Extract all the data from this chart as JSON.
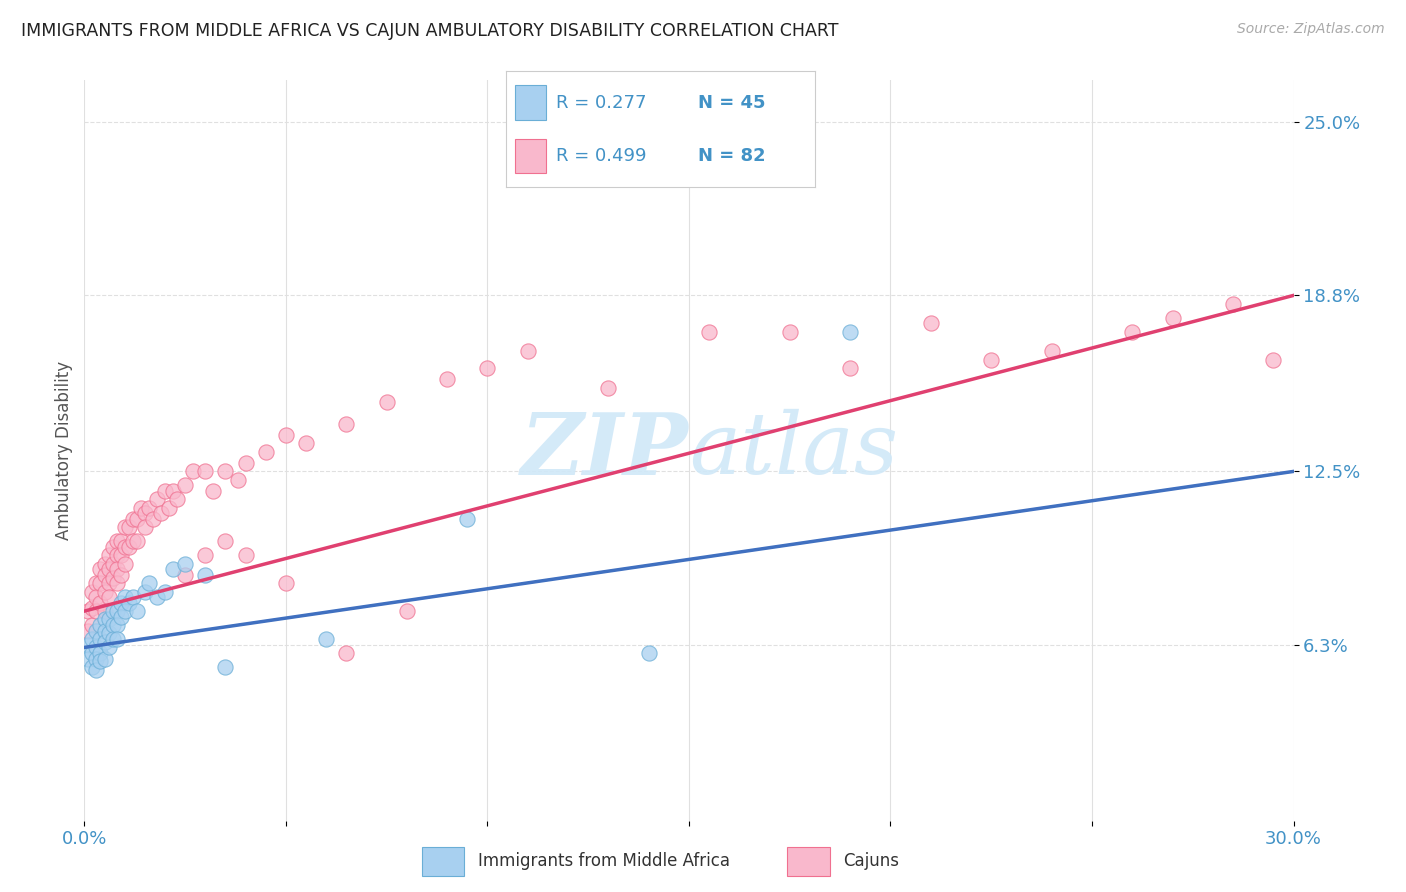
{
  "title": "IMMIGRANTS FROM MIDDLE AFRICA VS CAJUN AMBULATORY DISABILITY CORRELATION CHART",
  "source": "Source: ZipAtlas.com",
  "ylabel": "Ambulatory Disability",
  "ytick_labels": [
    "6.3%",
    "12.5%",
    "18.8%",
    "25.0%"
  ],
  "ytick_values": [
    0.063,
    0.125,
    0.188,
    0.25
  ],
  "xlim": [
    0.0,
    0.3
  ],
  "ylim": [
    0.0,
    0.265
  ],
  "legend_blue_R": "R = 0.277",
  "legend_blue_N": "N = 45",
  "legend_pink_R": "R = 0.499",
  "legend_pink_N": "N = 82",
  "blue_scatter_color": "#a8d0f0",
  "blue_edge_color": "#6aaed6",
  "pink_scatter_color": "#f9b8cc",
  "pink_edge_color": "#f07090",
  "blue_line_color": "#4070c0",
  "pink_line_color": "#e04070",
  "title_color": "#222222",
  "axis_label_color": "#4292c6",
  "watermark_color": "#d0e8f8",
  "background_color": "#ffffff",
  "grid_color": "#e0e0e0",
  "blue_trend_x0": 0.0,
  "blue_trend_y0": 0.062,
  "blue_trend_x1": 0.3,
  "blue_trend_y1": 0.125,
  "pink_trend_x0": 0.0,
  "pink_trend_y0": 0.075,
  "pink_trend_x1": 0.3,
  "pink_trend_y1": 0.188,
  "blue_scatter_x": [
    0.001,
    0.001,
    0.002,
    0.002,
    0.002,
    0.003,
    0.003,
    0.003,
    0.003,
    0.004,
    0.004,
    0.004,
    0.004,
    0.005,
    0.005,
    0.005,
    0.005,
    0.006,
    0.006,
    0.006,
    0.007,
    0.007,
    0.007,
    0.008,
    0.008,
    0.008,
    0.009,
    0.009,
    0.01,
    0.01,
    0.011,
    0.012,
    0.013,
    0.015,
    0.016,
    0.018,
    0.02,
    0.022,
    0.025,
    0.03,
    0.035,
    0.06,
    0.095,
    0.14,
    0.19
  ],
  "blue_scatter_y": [
    0.063,
    0.058,
    0.065,
    0.06,
    0.055,
    0.068,
    0.062,
    0.058,
    0.054,
    0.07,
    0.065,
    0.06,
    0.057,
    0.072,
    0.068,
    0.064,
    0.058,
    0.072,
    0.067,
    0.062,
    0.075,
    0.07,
    0.065,
    0.075,
    0.07,
    0.065,
    0.078,
    0.073,
    0.08,
    0.075,
    0.078,
    0.08,
    0.075,
    0.082,
    0.085,
    0.08,
    0.082,
    0.09,
    0.092,
    0.088,
    0.055,
    0.065,
    0.108,
    0.06,
    0.175
  ],
  "pink_scatter_x": [
    0.001,
    0.001,
    0.002,
    0.002,
    0.002,
    0.003,
    0.003,
    0.003,
    0.004,
    0.004,
    0.004,
    0.005,
    0.005,
    0.005,
    0.005,
    0.006,
    0.006,
    0.006,
    0.006,
    0.007,
    0.007,
    0.007,
    0.008,
    0.008,
    0.008,
    0.008,
    0.009,
    0.009,
    0.009,
    0.01,
    0.01,
    0.01,
    0.011,
    0.011,
    0.012,
    0.012,
    0.013,
    0.013,
    0.014,
    0.015,
    0.015,
    0.016,
    0.017,
    0.018,
    0.019,
    0.02,
    0.021,
    0.022,
    0.023,
    0.025,
    0.027,
    0.03,
    0.032,
    0.035,
    0.038,
    0.04,
    0.045,
    0.05,
    0.055,
    0.065,
    0.075,
    0.09,
    0.1,
    0.11,
    0.13,
    0.155,
    0.175,
    0.19,
    0.21,
    0.225,
    0.24,
    0.26,
    0.27,
    0.285,
    0.295,
    0.025,
    0.03,
    0.035,
    0.04,
    0.05,
    0.065,
    0.08
  ],
  "pink_scatter_y": [
    0.075,
    0.068,
    0.082,
    0.076,
    0.07,
    0.085,
    0.08,
    0.075,
    0.09,
    0.085,
    0.078,
    0.092,
    0.088,
    0.082,
    0.075,
    0.095,
    0.09,
    0.085,
    0.08,
    0.098,
    0.092,
    0.087,
    0.1,
    0.095,
    0.09,
    0.085,
    0.1,
    0.095,
    0.088,
    0.105,
    0.098,
    0.092,
    0.105,
    0.098,
    0.108,
    0.1,
    0.108,
    0.1,
    0.112,
    0.11,
    0.105,
    0.112,
    0.108,
    0.115,
    0.11,
    0.118,
    0.112,
    0.118,
    0.115,
    0.12,
    0.125,
    0.125,
    0.118,
    0.125,
    0.122,
    0.128,
    0.132,
    0.138,
    0.135,
    0.142,
    0.15,
    0.158,
    0.162,
    0.168,
    0.155,
    0.175,
    0.175,
    0.162,
    0.178,
    0.165,
    0.168,
    0.175,
    0.18,
    0.185,
    0.165,
    0.088,
    0.095,
    0.1,
    0.095,
    0.085,
    0.06,
    0.075
  ]
}
